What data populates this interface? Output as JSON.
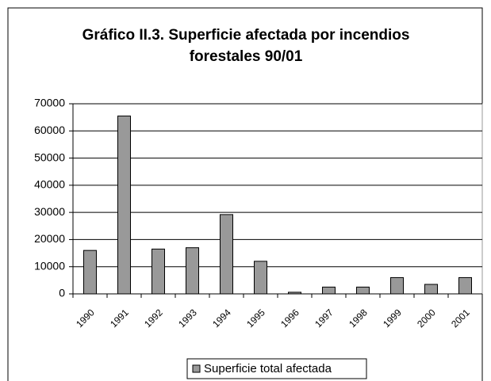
{
  "chart_data": {
    "type": "bar",
    "title": [
      "Gráfico II.3. Superficie afectada por incendios",
      "forestales 90/01"
    ],
    "categories": [
      "1990",
      "1991",
      "1992",
      "1993",
      "1994",
      "1995",
      "1996",
      "1997",
      "1998",
      "1999",
      "2000",
      "2001"
    ],
    "series": [
      {
        "name": "Superficie total afectada",
        "color": "#999999",
        "values": [
          16000,
          65500,
          16500,
          17000,
          29200,
          12000,
          600,
          2500,
          2500,
          6000,
          3500,
          6000
        ]
      }
    ],
    "ylim": [
      0,
      70000
    ],
    "yticks": [
      0,
      10000,
      20000,
      30000,
      40000,
      50000,
      60000,
      70000
    ],
    "grid": true,
    "legend": "bottom"
  }
}
